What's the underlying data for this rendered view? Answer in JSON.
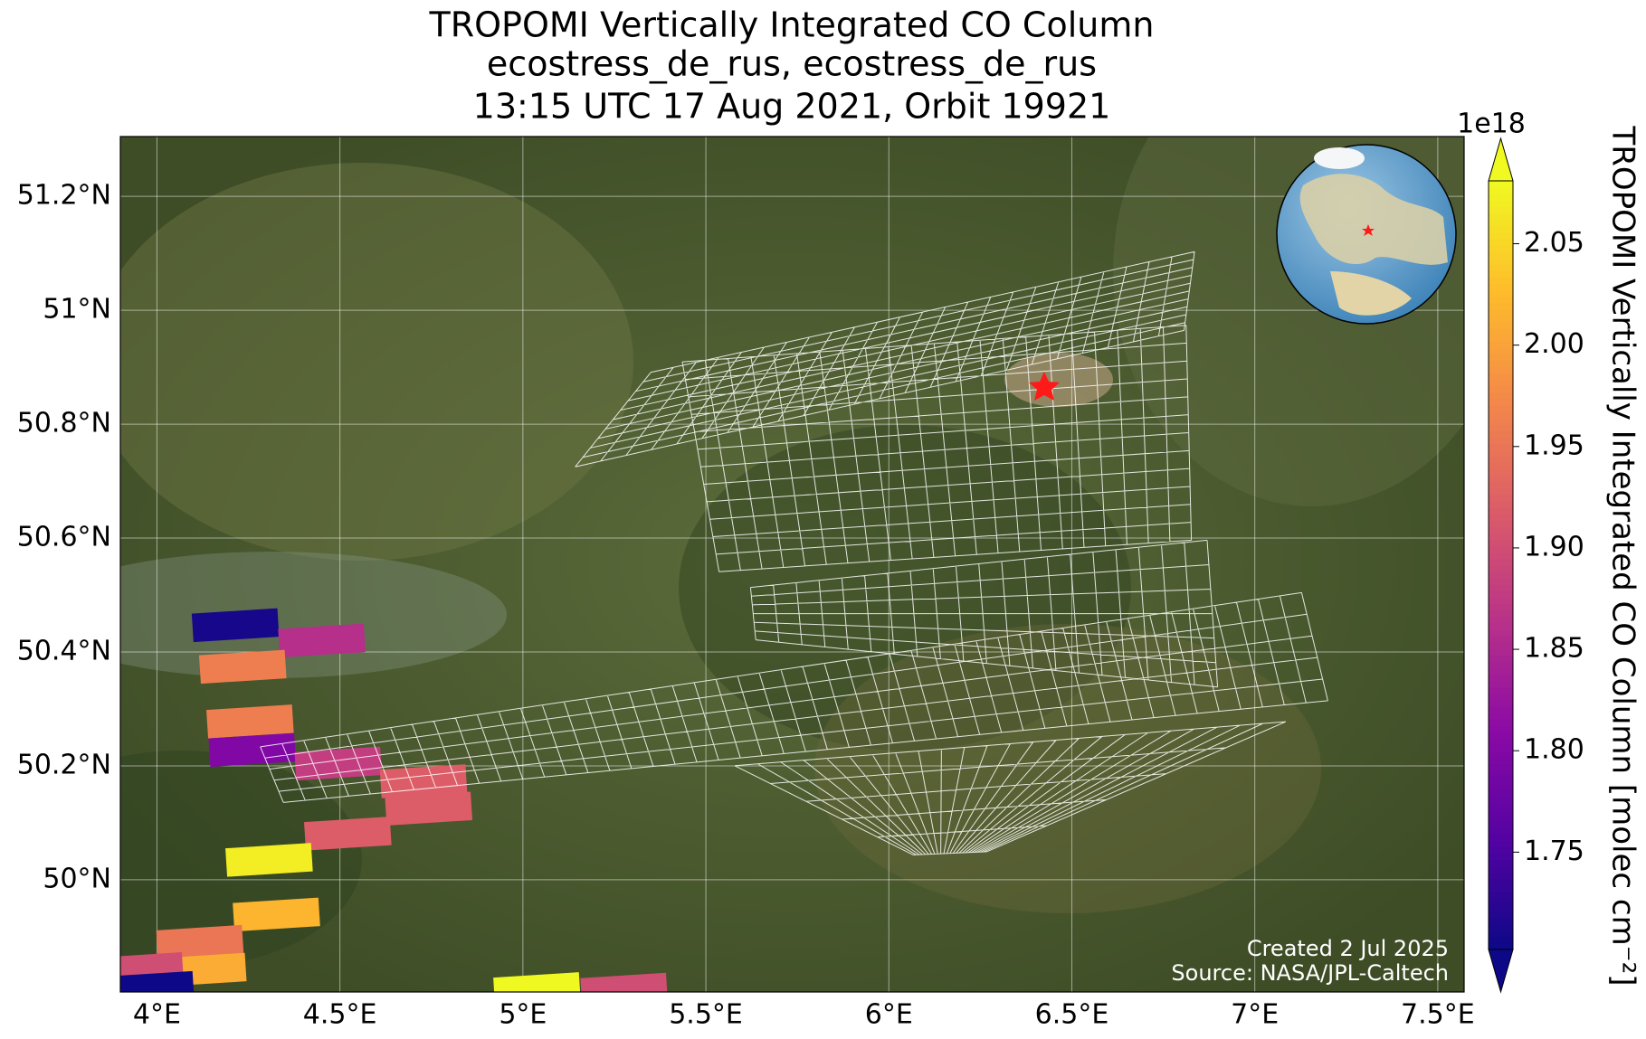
{
  "chart_data": {
    "type": "map",
    "title": [
      "TROPOMI Vertically Integrated CO Column",
      "ecostress_de_rus, ecostress_de_rus",
      "13:15 UTC 17 Aug 2021, Orbit 19921"
    ],
    "xlim": [
      3.9,
      7.572
    ],
    "ylim": [
      49.803,
      51.305
    ],
    "xticks": [
      {
        "value": 4,
        "label": "4°E"
      },
      {
        "value": 4.5,
        "label": "4.5°E"
      },
      {
        "value": 5,
        "label": "5°E"
      },
      {
        "value": 5.5,
        "label": "5.5°E"
      },
      {
        "value": 6,
        "label": "6°E"
      },
      {
        "value": 6.5,
        "label": "6.5°E"
      },
      {
        "value": 7,
        "label": "7°E"
      },
      {
        "value": 7.5,
        "label": "7.5°E"
      }
    ],
    "yticks": [
      {
        "value": 50,
        "label": "50°N"
      },
      {
        "value": 50.2,
        "label": "50.2°N"
      },
      {
        "value": 50.4,
        "label": "50.4°N"
      },
      {
        "value": 50.6,
        "label": "50.6°N"
      },
      {
        "value": 50.8,
        "label": "50.8°N"
      },
      {
        "value": 51,
        "label": "51°N"
      },
      {
        "value": 51.2,
        "label": "51.2°N"
      }
    ],
    "grid": true,
    "colormap": "plasma",
    "colorbar": {
      "label": "TROPOMI Vertically Integrated CO Column [molec cm⁻²]",
      "exponent": "1e18",
      "lim": [
        1.702,
        2.081
      ],
      "ticks": [
        1.75,
        {
          "value": 1.8,
          "label": "1.80"
        },
        1.85,
        {
          "value": 1.9,
          "label": "1.90"
        },
        1.95,
        {
          "value": 2.0,
          "label": "2.00"
        },
        2.05
      ]
    },
    "pixels": [
      {
        "lon": 4.212,
        "lat": 50.447,
        "value": 1.71
      },
      {
        "lon": 4.448,
        "lat": 50.42,
        "value": 1.86
      },
      {
        "lon": 4.232,
        "lat": 50.374,
        "value": 1.96
      },
      {
        "lon": 4.252,
        "lat": 50.278,
        "value": 1.96
      },
      {
        "lon": 4.258,
        "lat": 50.228,
        "value": 1.8
      },
      {
        "lon": 4.493,
        "lat": 50.204,
        "value": 1.88
      },
      {
        "lon": 4.726,
        "lat": 50.173,
        "value": 1.92
      },
      {
        "lon": 4.74,
        "lat": 50.125,
        "value": 1.92
      },
      {
        "lon": 4.519,
        "lat": 50.081,
        "value": 1.92
      },
      {
        "lon": 4.304,
        "lat": 50.035,
        "value": 2.07
      },
      {
        "lon": 4.324,
        "lat": 49.939,
        "value": 2.02
      },
      {
        "lon": 4.115,
        "lat": 49.891,
        "value": 1.95
      },
      {
        "lon": 4.123,
        "lat": 49.842,
        "value": 2.01
      },
      {
        "lon": 3.951,
        "lat": 49.843,
        "value": 1.9
      },
      {
        "lon": 3.98,
        "lat": 49.81,
        "value": 1.7
      },
      {
        "lon": 5.036,
        "lat": 49.808,
        "value": 2.08
      },
      {
        "lon": 5.274,
        "lat": 49.807,
        "value": 1.9
      }
    ],
    "annotations": [
      "Created 2 Jul 2025",
      "Source: NASA/JPL-Caltech"
    ]
  }
}
